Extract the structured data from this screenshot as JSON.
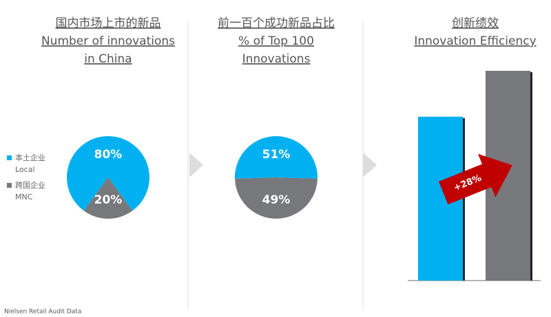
{
  "source": "Nielsen Retail Audit Data",
  "legend": [
    {
      "label": "本土企业",
      "sublabel": "Local",
      "color": "#00b0f0"
    },
    {
      "label": "跨国企业",
      "sublabel": "MNC",
      "color": "#77787b"
    }
  ],
  "chart_data": [
    {
      "type": "pie",
      "title": "国内市场上市的新品",
      "subtitle": "Number of innovations in China",
      "values": [
        80,
        20
      ],
      "value_labels": [
        "80%",
        "20%"
      ],
      "colors": [
        "#00b0f0",
        "#77787b"
      ]
    },
    {
      "type": "pie",
      "title": "前一百个成功新品占比",
      "subtitle": "% of Top 100 Innovations",
      "values": [
        51,
        49
      ],
      "value_labels": [
        "51%",
        "49%"
      ],
      "colors": [
        "#00b0f0",
        "#77787b"
      ]
    },
    {
      "type": "bar",
      "title": "创新绩效",
      "subtitle": "Innovation Efficiency",
      "values": [
        100,
        128
      ],
      "colors": [
        "#00b0f0",
        "#77787b"
      ],
      "annotation": "+28%"
    }
  ]
}
